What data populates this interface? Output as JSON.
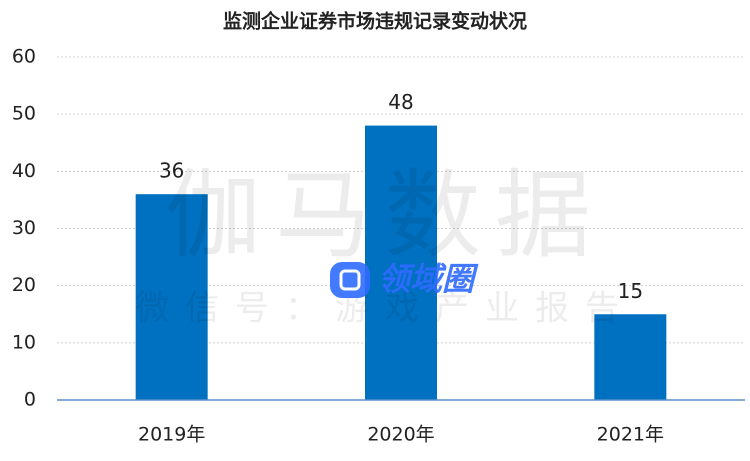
{
  "chart_data": {
    "type": "bar",
    "title": "监测企业证券市场违规记录变动状况",
    "categories": [
      "2019年",
      "2020年",
      "2021年"
    ],
    "values": [
      36,
      48,
      15
    ],
    "color": "#0070c0",
    "ylim": [
      0,
      60
    ],
    "yticks": [
      0,
      10,
      20,
      30,
      40,
      50,
      60
    ],
    "grid": true,
    "data_labels": true,
    "watermarks": [
      "伽马数据",
      "微信号：游戏产业报告",
      "领域圈"
    ]
  }
}
